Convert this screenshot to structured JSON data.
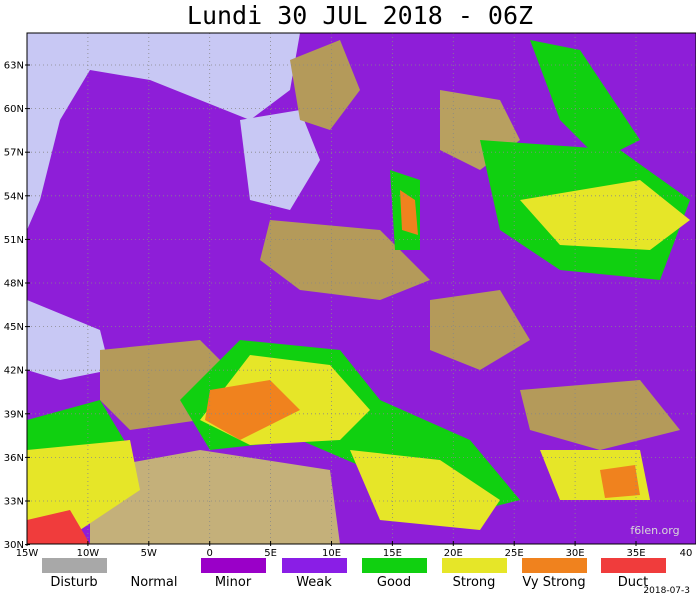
{
  "header": {
    "title": "Lundi 30 JUL 2018 - 06Z"
  },
  "map": {
    "lat_labels": [
      "63N",
      "60N",
      "57N",
      "54N",
      "51N",
      "48N",
      "45N",
      "42N",
      "39N",
      "36N",
      "33N",
      "30N"
    ],
    "lon_labels": [
      "15W",
      "10W",
      "5W",
      "0",
      "5E",
      "10E",
      "15E",
      "20E",
      "25E",
      "30E",
      "35E",
      "40"
    ]
  },
  "legend": {
    "items": [
      {
        "label": "Disturb",
        "color": "#a8a8a8"
      },
      {
        "label": "Normal",
        "color": "#ffffff"
      },
      {
        "label": "Minor",
        "color": "#9a00c8"
      },
      {
        "label": "Weak",
        "color": "#8a1ee6"
      },
      {
        "label": "Good",
        "color": "#10d010"
      },
      {
        "label": "Strong",
        "color": "#e6e628"
      },
      {
        "label": "Vy Strong",
        "color": "#f0821e"
      },
      {
        "label": "Duct",
        "color": "#f03c3c"
      }
    ]
  },
  "footer": {
    "watermark": "f6len.org",
    "date": "2018-07-3"
  }
}
